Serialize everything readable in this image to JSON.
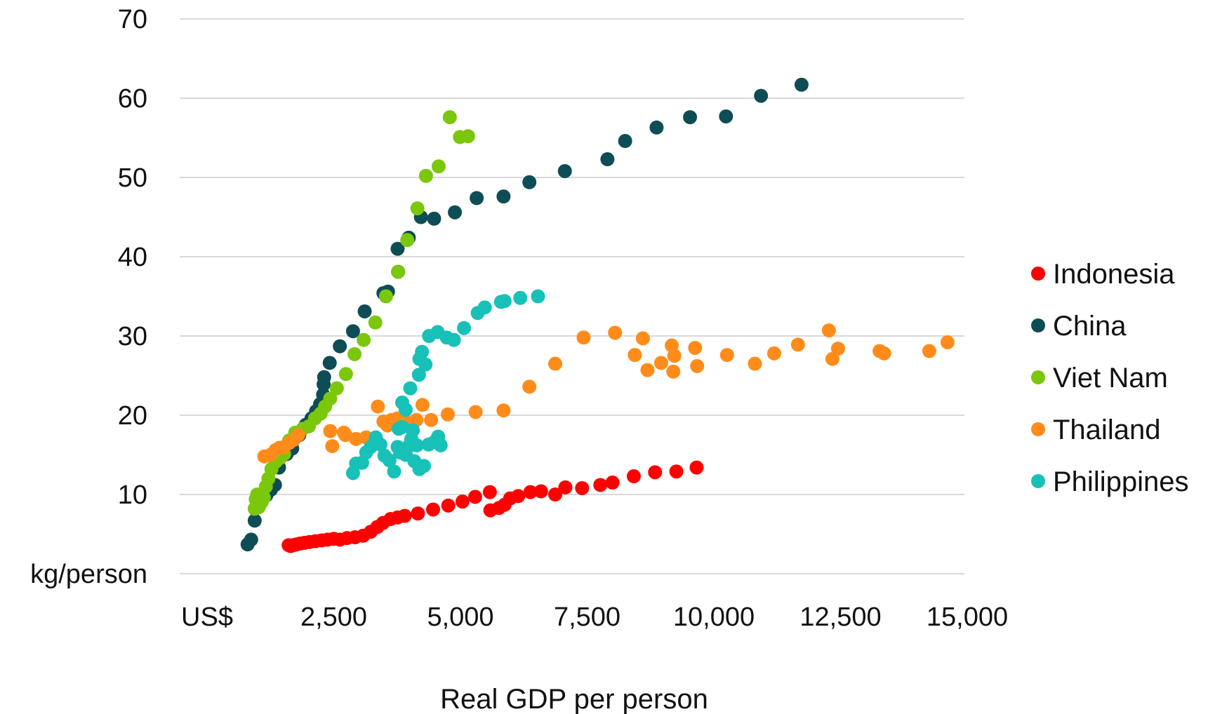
{
  "chart_data": {
    "type": "scatter",
    "title": "",
    "xlabel": "Real GDP per person",
    "ylabel": "",
    "x_unit_label": "US$",
    "y_unit_label": "kg/person",
    "xlim": [
      0,
      15000
    ],
    "ylim": [
      0,
      70
    ],
    "x_ticks": [
      2500,
      5000,
      7500,
      10000,
      12500,
      15000
    ],
    "x_tick_labels": [
      "2,500",
      "5,000",
      "7,500",
      "10,000",
      "12,500",
      "15,000"
    ],
    "y_ticks": [
      10,
      20,
      30,
      40,
      50,
      60,
      70
    ],
    "y_tick_labels": [
      "10",
      "20",
      "30",
      "40",
      "50",
      "60",
      "70"
    ],
    "grid": "horizontal",
    "legend_position": "right",
    "series": [
      {
        "name": "Indonesia",
        "color": "#ff0000",
        "points": [
          [
            1610,
            3.6
          ],
          [
            1650,
            3.5
          ],
          [
            1700,
            3.6
          ],
          [
            1760,
            3.7
          ],
          [
            1830,
            3.8
          ],
          [
            1920,
            3.9
          ],
          [
            2020,
            4.0
          ],
          [
            2140,
            4.1
          ],
          [
            2260,
            4.2
          ],
          [
            2380,
            4.3
          ],
          [
            2500,
            4.4
          ],
          [
            2620,
            4.3
          ],
          [
            2760,
            4.5
          ],
          [
            2920,
            4.6
          ],
          [
            3080,
            4.8
          ],
          [
            3230,
            5.3
          ],
          [
            3360,
            5.9
          ],
          [
            3470,
            6.4
          ],
          [
            3620,
            6.9
          ],
          [
            3760,
            7.1
          ],
          [
            3900,
            7.3
          ],
          [
            4160,
            7.6
          ],
          [
            4460,
            8.1
          ],
          [
            4760,
            8.6
          ],
          [
            5040,
            9.1
          ],
          [
            5290,
            9.7
          ],
          [
            5580,
            10.3
          ],
          [
            5590,
            8.0
          ],
          [
            5760,
            8.3
          ],
          [
            5870,
            8.7
          ],
          [
            5980,
            9.5
          ],
          [
            6140,
            9.8
          ],
          [
            6380,
            10.3
          ],
          [
            6590,
            10.4
          ],
          [
            6870,
            10.0
          ],
          [
            7070,
            10.9
          ],
          [
            7400,
            10.8
          ],
          [
            7760,
            11.2
          ],
          [
            8000,
            11.5
          ],
          [
            8420,
            12.3
          ],
          [
            8840,
            12.8
          ],
          [
            9260,
            12.9
          ],
          [
            9660,
            13.4
          ]
        ]
      },
      {
        "name": "China",
        "color": "#0e4d56",
        "points": [
          [
            800,
            3.7
          ],
          [
            870,
            4.3
          ],
          [
            940,
            6.7
          ],
          [
            1010,
            8.5
          ],
          [
            1080,
            9.4
          ],
          [
            1170,
            9.9
          ],
          [
            1260,
            10.6
          ],
          [
            1340,
            11.2
          ],
          [
            1420,
            13.4
          ],
          [
            1570,
            15.1
          ],
          [
            1680,
            15.8
          ],
          [
            1820,
            17.5
          ],
          [
            1950,
            18.8
          ],
          [
            2060,
            19.6
          ],
          [
            2150,
            20.5
          ],
          [
            2230,
            21.4
          ],
          [
            2290,
            22.6
          ],
          [
            2300,
            23.9
          ],
          [
            2310,
            24.8
          ],
          [
            2420,
            26.6
          ],
          [
            2620,
            28.7
          ],
          [
            2880,
            30.6
          ],
          [
            3110,
            33.1
          ],
          [
            3480,
            35.4
          ],
          [
            3570,
            35.6
          ],
          [
            3770,
            38.1
          ],
          [
            3760,
            41.0
          ],
          [
            3980,
            42.4
          ],
          [
            4220,
            45.0
          ],
          [
            4480,
            44.8
          ],
          [
            4890,
            45.6
          ],
          [
            5320,
            47.4
          ],
          [
            5850,
            47.6
          ],
          [
            6360,
            49.4
          ],
          [
            7060,
            50.8
          ],
          [
            7900,
            52.3
          ],
          [
            8250,
            54.6
          ],
          [
            8870,
            56.3
          ],
          [
            9530,
            57.6
          ],
          [
            10240,
            57.7
          ],
          [
            10930,
            60.3
          ],
          [
            11730,
            61.7
          ]
        ]
      },
      {
        "name": "Viet Nam",
        "color": "#7ac70c",
        "points": [
          [
            940,
            8.2
          ],
          [
            960,
            9.4
          ],
          [
            990,
            10.0
          ],
          [
            1020,
            8.4
          ],
          [
            1050,
            8.8
          ],
          [
            1080,
            9.1
          ],
          [
            1120,
            9.6
          ],
          [
            1160,
            11.0
          ],
          [
            1210,
            12.0
          ],
          [
            1270,
            13.2
          ],
          [
            1350,
            14.1
          ],
          [
            1440,
            14.6
          ],
          [
            1520,
            15.1
          ],
          [
            1620,
            16.8
          ],
          [
            1740,
            17.8
          ],
          [
            1890,
            18.3
          ],
          [
            2010,
            18.6
          ],
          [
            2130,
            19.6
          ],
          [
            2240,
            20.2
          ],
          [
            2330,
            21.1
          ],
          [
            2430,
            22.1
          ],
          [
            2560,
            23.4
          ],
          [
            2740,
            25.2
          ],
          [
            2910,
            27.7
          ],
          [
            3090,
            29.5
          ],
          [
            3320,
            31.7
          ],
          [
            3530,
            35.0
          ],
          [
            3770,
            38.1
          ],
          [
            3950,
            42.1
          ],
          [
            4150,
            46.1
          ],
          [
            4320,
            50.2
          ],
          [
            4570,
            51.4
          ],
          [
            4790,
            57.6
          ],
          [
            4990,
            55.1
          ],
          [
            5150,
            55.2
          ]
        ]
      },
      {
        "name": "Thailand",
        "color": "#ff8c1a",
        "points": [
          [
            1130,
            14.8
          ],
          [
            1250,
            15.0
          ],
          [
            1350,
            15.6
          ],
          [
            1430,
            15.9
          ],
          [
            1520,
            16.0
          ],
          [
            1620,
            16.5
          ],
          [
            1710,
            16.9
          ],
          [
            1800,
            17.5
          ],
          [
            2430,
            18.0
          ],
          [
            2470,
            16.1
          ],
          [
            2700,
            17.8
          ],
          [
            2730,
            17.5
          ],
          [
            2940,
            17.0
          ],
          [
            3140,
            17.2
          ],
          [
            3370,
            21.1
          ],
          [
            3480,
            19.2
          ],
          [
            3560,
            18.7
          ],
          [
            3640,
            19.4
          ],
          [
            3760,
            19.6
          ],
          [
            3880,
            19.5
          ],
          [
            3990,
            19.0
          ],
          [
            4130,
            19.4
          ],
          [
            4250,
            21.3
          ],
          [
            4420,
            19.4
          ],
          [
            4750,
            20.1
          ],
          [
            5300,
            20.4
          ],
          [
            5850,
            20.6
          ],
          [
            6360,
            23.6
          ],
          [
            6870,
            26.5
          ],
          [
            7430,
            29.8
          ],
          [
            8050,
            30.4
          ],
          [
            8440,
            27.6
          ],
          [
            8600,
            29.7
          ],
          [
            8690,
            25.7
          ],
          [
            8960,
            26.6
          ],
          [
            9170,
            28.8
          ],
          [
            9200,
            25.5
          ],
          [
            9220,
            27.5
          ],
          [
            9630,
            28.5
          ],
          [
            9670,
            26.2
          ],
          [
            10260,
            27.6
          ],
          [
            10810,
            26.5
          ],
          [
            11190,
            27.8
          ],
          [
            11660,
            28.9
          ],
          [
            12270,
            30.7
          ],
          [
            12340,
            27.1
          ],
          [
            12450,
            28.4
          ],
          [
            13270,
            28.1
          ],
          [
            13360,
            27.8
          ],
          [
            14250,
            28.1
          ],
          [
            14610,
            29.2
          ]
        ]
      },
      {
        "name": "Philippines",
        "color": "#17c1b8",
        "points": [
          [
            2880,
            12.7
          ],
          [
            2940,
            13.9
          ],
          [
            3060,
            14.0
          ],
          [
            3140,
            15.3
          ],
          [
            3230,
            16.0
          ],
          [
            3330,
            17.2
          ],
          [
            3420,
            16.3
          ],
          [
            3500,
            14.9
          ],
          [
            3600,
            14.3
          ],
          [
            3690,
            12.9
          ],
          [
            3760,
            16.0
          ],
          [
            3810,
            15.3
          ],
          [
            3850,
            18.5
          ],
          [
            3920,
            15.0
          ],
          [
            3980,
            16.1
          ],
          [
            4030,
            17.0
          ],
          [
            4060,
            18.1
          ],
          [
            4090,
            14.2
          ],
          [
            4140,
            16.2
          ],
          [
            4190,
            13.2
          ],
          [
            4280,
            13.6
          ],
          [
            4370,
            16.3
          ],
          [
            4480,
            16.6
          ],
          [
            4560,
            17.3
          ],
          [
            4610,
            16.2
          ],
          [
            3780,
            18.3
          ],
          [
            3850,
            21.6
          ],
          [
            3920,
            20.7
          ],
          [
            4010,
            23.4
          ],
          [
            4180,
            25.1
          ],
          [
            4190,
            27.1
          ],
          [
            4240,
            28.0
          ],
          [
            4310,
            26.4
          ],
          [
            4380,
            30.0
          ],
          [
            4550,
            30.5
          ],
          [
            4730,
            29.8
          ],
          [
            4870,
            29.5
          ],
          [
            5070,
            31.0
          ],
          [
            5340,
            32.9
          ],
          [
            5480,
            33.6
          ],
          [
            5800,
            34.3
          ],
          [
            5870,
            34.4
          ],
          [
            6180,
            34.8
          ],
          [
            6530,
            35.0
          ]
        ]
      }
    ]
  }
}
